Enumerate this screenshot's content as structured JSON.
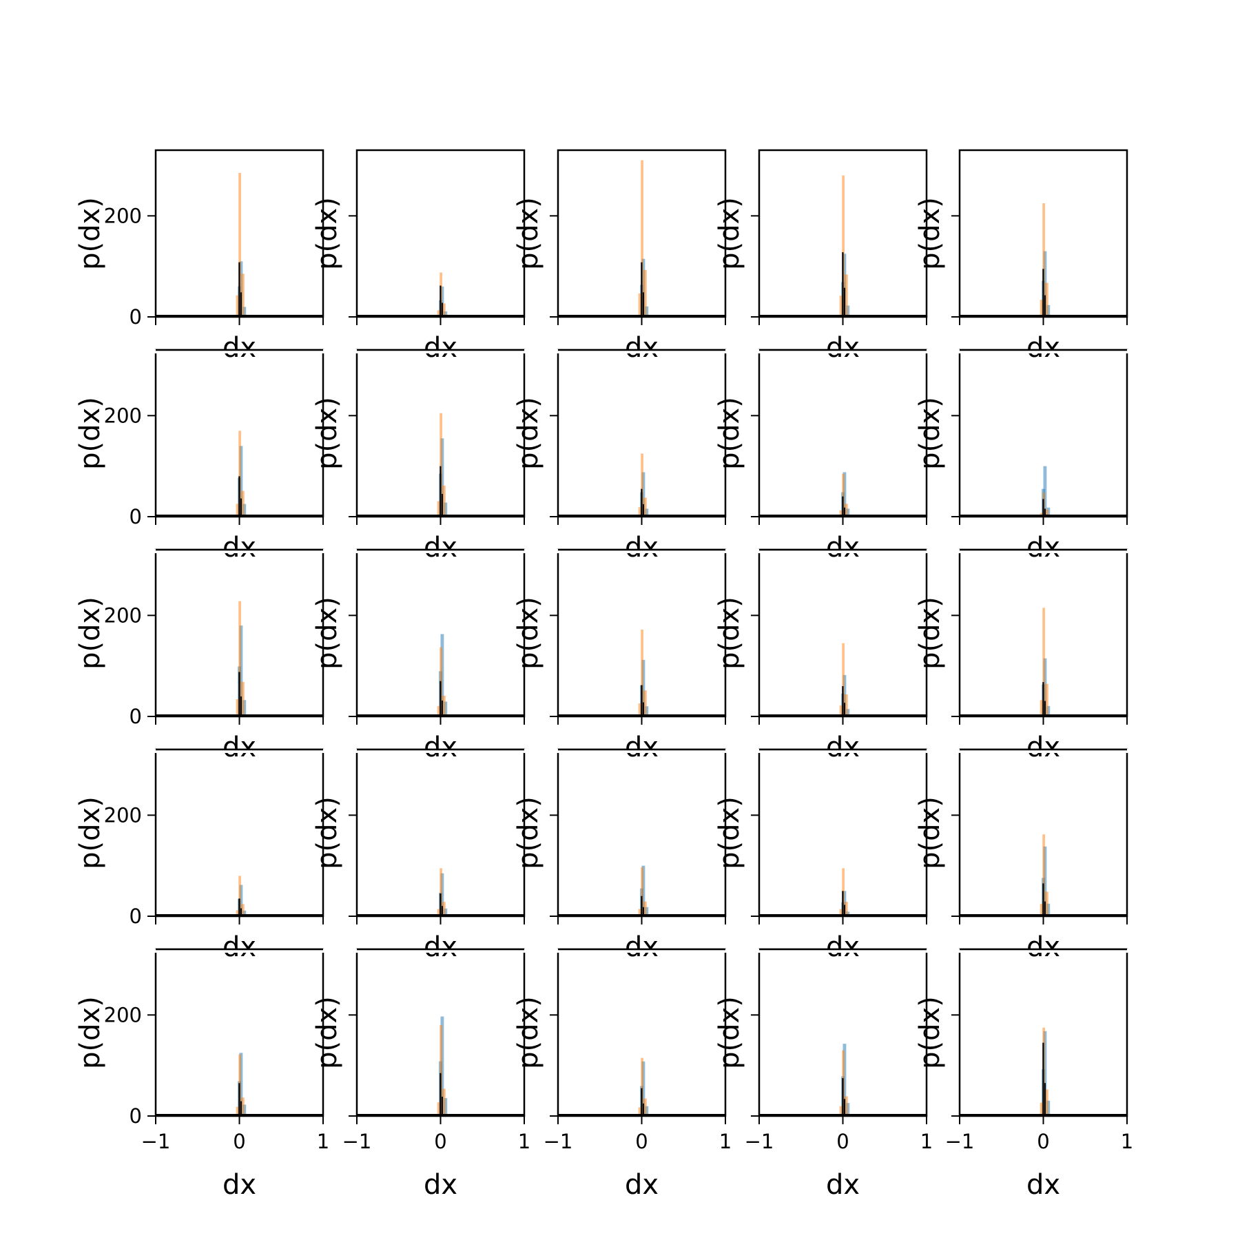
{
  "chart_data": {
    "type": "histogram-grid",
    "rows": 5,
    "cols": 5,
    "sharex": true,
    "sharey": true,
    "xlim": [
      -1,
      1
    ],
    "ylim": [
      0,
      330
    ],
    "xticks": [
      -1,
      0,
      1
    ],
    "xtick_labels": [
      "−1",
      "0",
      "1"
    ],
    "yticks": [
      0,
      200
    ],
    "ytick_labels": [
      "0",
      "200"
    ],
    "xlabel": "dx",
    "ylabel": "p(dx)",
    "colors": {
      "blue": "#1f77b4",
      "orange": "#ff7f0e",
      "black": "#000000"
    },
    "panels": [
      {
        "orange_peak": 285,
        "blue_peak": 110,
        "black_peak": 108
      },
      {
        "orange_peak": 88,
        "blue_peak": 60,
        "black_peak": 62
      },
      {
        "orange_peak": 310,
        "blue_peak": 115,
        "black_peak": 108
      },
      {
        "orange_peak": 280,
        "blue_peak": 125,
        "black_peak": 128
      },
      {
        "orange_peak": 225,
        "blue_peak": 130,
        "black_peak": 95
      },
      {
        "orange_peak": 170,
        "blue_peak": 140,
        "black_peak": 80
      },
      {
        "orange_peak": 205,
        "blue_peak": 155,
        "black_peak": 100
      },
      {
        "orange_peak": 125,
        "blue_peak": 88,
        "black_peak": 55
      },
      {
        "orange_peak": 85,
        "blue_peak": 88,
        "black_peak": 40
      },
      {
        "orange_peak": 48,
        "blue_peak": 100,
        "black_peak": 35
      },
      {
        "orange_peak": 228,
        "blue_peak": 180,
        "black_peak": 88
      },
      {
        "orange_peak": 137,
        "blue_peak": 163,
        "black_peak": 70
      },
      {
        "orange_peak": 172,
        "blue_peak": 112,
        "black_peak": 62
      },
      {
        "orange_peak": 145,
        "blue_peak": 82,
        "black_peak": 60
      },
      {
        "orange_peak": 215,
        "blue_peak": 115,
        "black_peak": 68
      },
      {
        "orange_peak": 80,
        "blue_peak": 62,
        "black_peak": 35
      },
      {
        "orange_peak": 95,
        "blue_peak": 85,
        "black_peak": 45
      },
      {
        "orange_peak": 97,
        "blue_peak": 100,
        "black_peak": 40
      },
      {
        "orange_peak": 95,
        "blue_peak": 50,
        "black_peak": 50
      },
      {
        "orange_peak": 162,
        "blue_peak": 138,
        "black_peak": 65
      },
      {
        "orange_peak": 122,
        "blue_peak": 125,
        "black_peak": 65
      },
      {
        "orange_peak": 180,
        "blue_peak": 197,
        "black_peak": 85
      },
      {
        "orange_peak": 115,
        "blue_peak": 108,
        "black_peak": 55
      },
      {
        "orange_peak": 130,
        "blue_peak": 143,
        "black_peak": 75
      },
      {
        "orange_peak": 175,
        "blue_peak": 168,
        "black_peak": 145
      }
    ]
  }
}
